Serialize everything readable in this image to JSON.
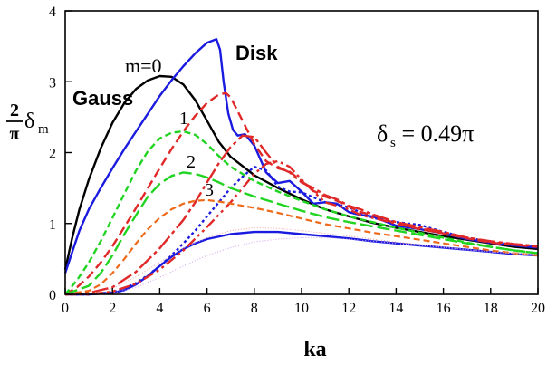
{
  "chart_data": {
    "type": "line",
    "xlabel": "ka",
    "ylabel": {
      "fraction_num": "2",
      "fraction_den": "π",
      "symbol": "δ",
      "subscript": "m"
    },
    "xlim": [
      0,
      20
    ],
    "ylim": [
      0,
      4
    ],
    "xticks": [
      0,
      2,
      4,
      6,
      8,
      10,
      12,
      14,
      16,
      18,
      20
    ],
    "yticks": [
      0,
      1,
      2,
      3,
      4
    ],
    "grid": false,
    "annotations": {
      "gauss": "Gauss",
      "disk": "Disk",
      "m0": "m=0",
      "m1": "1",
      "m2": "2",
      "m3": "3",
      "delta_s": {
        "symbol": "δ",
        "subscript": "s",
        "value": " = 0.49π"
      }
    },
    "series": [
      {
        "color": "#000000",
        "dash": "solid",
        "width": 2.4,
        "x": [
          0,
          0.3,
          0.6,
          1,
          1.5,
          2,
          2.5,
          3,
          3.5,
          4,
          4.5,
          5,
          5.5,
          6,
          6.5,
          7,
          8,
          9,
          10,
          11,
          12,
          13,
          14,
          15,
          16,
          17,
          18,
          19,
          20
        ],
        "y": [
          0.35,
          0.8,
          1.2,
          1.62,
          2.06,
          2.42,
          2.7,
          2.9,
          3.02,
          3.08,
          3.07,
          2.96,
          2.74,
          2.45,
          2.15,
          1.94,
          1.68,
          1.5,
          1.34,
          1.2,
          1.1,
          1.01,
          0.94,
          0.88,
          0.82,
          0.77,
          0.72,
          0.67,
          0.64
        ]
      },
      {
        "color": "#1b1be0",
        "dash": "solid",
        "width": 2.4,
        "x": [
          0,
          0.3,
          0.6,
          1,
          1.5,
          2,
          2.5,
          3,
          3.5,
          4,
          4.5,
          5,
          5.5,
          6,
          6.4,
          6.55,
          6.7,
          6.9,
          7.1,
          7.3,
          7.6,
          8,
          8.5,
          9,
          9.5,
          10,
          10.5,
          11,
          11.5,
          12,
          12.5,
          13,
          14,
          15,
          16,
          17,
          18,
          19,
          20
        ],
        "y": [
          0.3,
          0.6,
          0.9,
          1.2,
          1.5,
          1.78,
          2.05,
          2.3,
          2.55,
          2.8,
          3.02,
          3.22,
          3.4,
          3.55,
          3.6,
          3.45,
          3.0,
          2.55,
          2.32,
          2.24,
          2.26,
          2.1,
          1.72,
          1.57,
          1.6,
          1.45,
          1.28,
          1.3,
          1.28,
          1.16,
          1.12,
          1.1,
          0.97,
          0.92,
          0.86,
          0.78,
          0.73,
          0.69,
          0.66
        ]
      },
      {
        "color": "#1b1be0",
        "dash": "solid",
        "width": 2.4,
        "x": [
          0,
          1,
          2,
          2.5,
          3,
          3.5,
          4,
          4.5,
          5,
          5.5,
          6,
          7,
          8,
          9,
          10,
          11,
          12,
          13,
          14,
          15,
          16,
          17,
          18,
          19,
          20
        ],
        "y": [
          0,
          0,
          0.02,
          0.06,
          0.14,
          0.26,
          0.4,
          0.53,
          0.64,
          0.72,
          0.78,
          0.85,
          0.88,
          0.88,
          0.85,
          0.82,
          0.79,
          0.75,
          0.72,
          0.69,
          0.66,
          0.63,
          0.6,
          0.57,
          0.55
        ]
      },
      {
        "color": "#1b1be0",
        "dash": "3,3",
        "width": 2.4,
        "x": [
          0,
          1,
          2,
          2.5,
          3,
          3.5,
          4,
          4.5,
          5,
          5.5,
          6,
          6.5,
          7,
          7.5,
          8,
          8.5,
          9,
          9.5,
          10,
          11,
          12,
          13,
          14,
          15,
          16,
          17,
          18,
          19,
          20
        ],
        "y": [
          0,
          0,
          0.03,
          0.08,
          0.16,
          0.27,
          0.4,
          0.55,
          0.72,
          0.9,
          1.1,
          1.3,
          1.5,
          1.66,
          1.8,
          1.75,
          1.52,
          1.45,
          1.44,
          1.3,
          1.23,
          1.08,
          1.02,
          0.98,
          0.88,
          0.8,
          0.74,
          0.7,
          0.67
        ]
      },
      {
        "color": "#e02828",
        "dash": "10,5",
        "width": 2.4,
        "x": [
          0,
          0.5,
          1,
          1.5,
          2,
          2.5,
          3,
          3.5,
          4,
          4.5,
          5,
          5.5,
          6,
          6.5,
          6.8,
          7,
          7.5,
          8,
          8.5,
          9,
          9.5,
          10,
          10.5,
          11,
          11.5,
          12,
          12.5,
          13,
          14,
          15,
          16,
          17,
          18,
          19,
          20
        ],
        "y": [
          0,
          0.1,
          0.25,
          0.45,
          0.68,
          0.95,
          1.22,
          1.5,
          1.78,
          2.05,
          2.3,
          2.52,
          2.7,
          2.82,
          2.84,
          2.78,
          2.45,
          2.12,
          1.88,
          1.78,
          1.73,
          1.6,
          1.46,
          1.38,
          1.32,
          1.24,
          1.16,
          1.12,
          1.0,
          0.92,
          0.86,
          0.79,
          0.73,
          0.7,
          0.67
        ]
      },
      {
        "color": "#e02828",
        "dash": "18,4,4,4",
        "width": 2.4,
        "x": [
          0,
          1,
          2,
          3,
          4,
          5,
          5.5,
          6,
          6.5,
          7,
          7.5,
          8,
          8.5,
          9,
          9.5,
          10,
          10.5,
          11,
          11.5,
          12,
          12.5,
          13,
          14,
          15,
          16,
          17,
          18,
          19,
          20
        ],
        "y": [
          0,
          0.02,
          0.1,
          0.32,
          0.65,
          1.05,
          1.3,
          1.58,
          1.85,
          2.08,
          2.24,
          2.22,
          2.0,
          1.8,
          1.72,
          1.58,
          1.5,
          1.4,
          1.34,
          1.25,
          1.2,
          1.13,
          1.02,
          0.95,
          0.88,
          0.8,
          0.75,
          0.71,
          0.68
        ]
      },
      {
        "color": "#e02828",
        "dash": "12,4,3,4,3,4",
        "width": 2.4,
        "x": [
          0,
          1,
          2,
          3,
          4,
          5,
          6,
          7,
          7.5,
          8,
          8.5,
          9,
          9.5,
          10,
          10.5,
          11,
          11.5,
          12,
          12.5,
          13,
          14,
          15,
          16,
          17,
          18,
          19,
          20
        ],
        "y": [
          0,
          0,
          0.04,
          0.15,
          0.35,
          0.62,
          0.95,
          1.3,
          1.5,
          1.7,
          1.84,
          1.88,
          1.8,
          1.62,
          1.45,
          1.3,
          1.25,
          1.2,
          1.12,
          1.08,
          1.0,
          0.93,
          0.86,
          0.8,
          0.74,
          0.7,
          0.68
        ]
      },
      {
        "color": "#22d422",
        "dash": "7,4",
        "width": 2.4,
        "x": [
          0,
          0.5,
          1,
          1.5,
          2,
          2.5,
          3,
          3.5,
          4,
          4.5,
          5,
          5.5,
          6,
          6.5,
          7,
          8,
          9,
          10,
          11,
          12,
          13,
          14,
          15,
          16,
          17,
          18,
          19,
          20
        ],
        "y": [
          0,
          0.2,
          0.45,
          0.75,
          1.08,
          1.42,
          1.75,
          2.02,
          2.2,
          2.28,
          2.3,
          2.25,
          2.12,
          1.95,
          1.8,
          1.6,
          1.45,
          1.32,
          1.2,
          1.1,
          1.02,
          0.94,
          0.87,
          0.8,
          0.73,
          0.67,
          0.62,
          0.58
        ]
      },
      {
        "color": "#22d422",
        "dash": "14,5",
        "width": 2.4,
        "x": [
          0,
          1,
          1.5,
          2,
          2.5,
          3,
          3.5,
          4,
          4.5,
          5,
          5.5,
          6,
          6.5,
          7,
          8,
          9,
          10,
          11,
          12,
          13,
          14,
          15,
          16,
          17,
          18,
          19,
          20
        ],
        "y": [
          0,
          0.12,
          0.3,
          0.55,
          0.85,
          1.12,
          1.38,
          1.56,
          1.67,
          1.72,
          1.7,
          1.65,
          1.58,
          1.5,
          1.38,
          1.28,
          1.18,
          1.09,
          1.02,
          0.96,
          0.9,
          0.84,
          0.78,
          0.72,
          0.67,
          0.62,
          0.58
        ]
      },
      {
        "color": "#ee6a1a",
        "dash": "7,4",
        "width": 2.2,
        "x": [
          0,
          1,
          1.5,
          2,
          2.5,
          3,
          3.5,
          4,
          4.5,
          5,
          5.5,
          6,
          6.5,
          7,
          8,
          9,
          10,
          11,
          12,
          13,
          14,
          15,
          16,
          17,
          18,
          19,
          20
        ],
        "y": [
          0,
          0.05,
          0.14,
          0.3,
          0.5,
          0.72,
          0.92,
          1.08,
          1.2,
          1.28,
          1.32,
          1.33,
          1.31,
          1.28,
          1.22,
          1.15,
          1.07,
          0.99,
          0.93,
          0.87,
          0.82,
          0.77,
          0.72,
          0.67,
          0.62,
          0.58,
          0.55
        ]
      },
      {
        "color": "#f2a5a5",
        "dash": "1,2",
        "width": 1,
        "x": [
          0,
          1,
          2,
          3,
          4,
          5,
          6,
          7,
          8,
          9,
          10,
          11,
          12,
          13,
          14,
          15,
          16,
          17,
          18,
          19,
          20
        ],
        "y": [
          0,
          0.01,
          0.08,
          0.25,
          0.45,
          0.65,
          0.8,
          0.9,
          0.94,
          0.93,
          0.9,
          0.86,
          0.82,
          0.78,
          0.74,
          0.7,
          0.67,
          0.63,
          0.6,
          0.58,
          0.56
        ]
      },
      {
        "color": "#cfa0ea",
        "dash": "1,2",
        "width": 1,
        "x": [
          0,
          2,
          3,
          4,
          5,
          6,
          7,
          8,
          9,
          10,
          11,
          12,
          13,
          14,
          15,
          16,
          17,
          18,
          19,
          20
        ],
        "y": [
          0,
          0.02,
          0.1,
          0.24,
          0.4,
          0.55,
          0.66,
          0.74,
          0.78,
          0.8,
          0.8,
          0.78,
          0.75,
          0.72,
          0.69,
          0.66,
          0.63,
          0.6,
          0.58,
          0.56
        ]
      }
    ]
  }
}
